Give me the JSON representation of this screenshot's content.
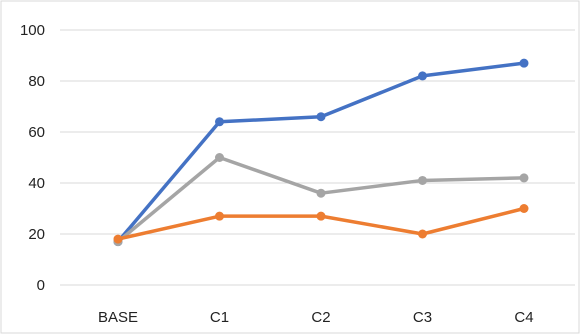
{
  "chart_data": {
    "type": "line",
    "title": "",
    "xlabel": "",
    "ylabel": "",
    "categories": [
      "BASE",
      "C1",
      "C2",
      "C3",
      "C4"
    ],
    "ylim": [
      0,
      100
    ],
    "yticks": [
      0,
      20,
      40,
      60,
      80,
      100
    ],
    "grid": true,
    "legend": "none",
    "series": [
      {
        "color": "#4472c4",
        "values": [
          17,
          64,
          66,
          82,
          87
        ]
      },
      {
        "color": "#a5a5a5",
        "values": [
          17,
          50,
          36,
          41,
          42
        ]
      },
      {
        "color": "#ed7d31",
        "values": [
          18,
          27,
          27,
          20,
          30
        ]
      }
    ]
  }
}
